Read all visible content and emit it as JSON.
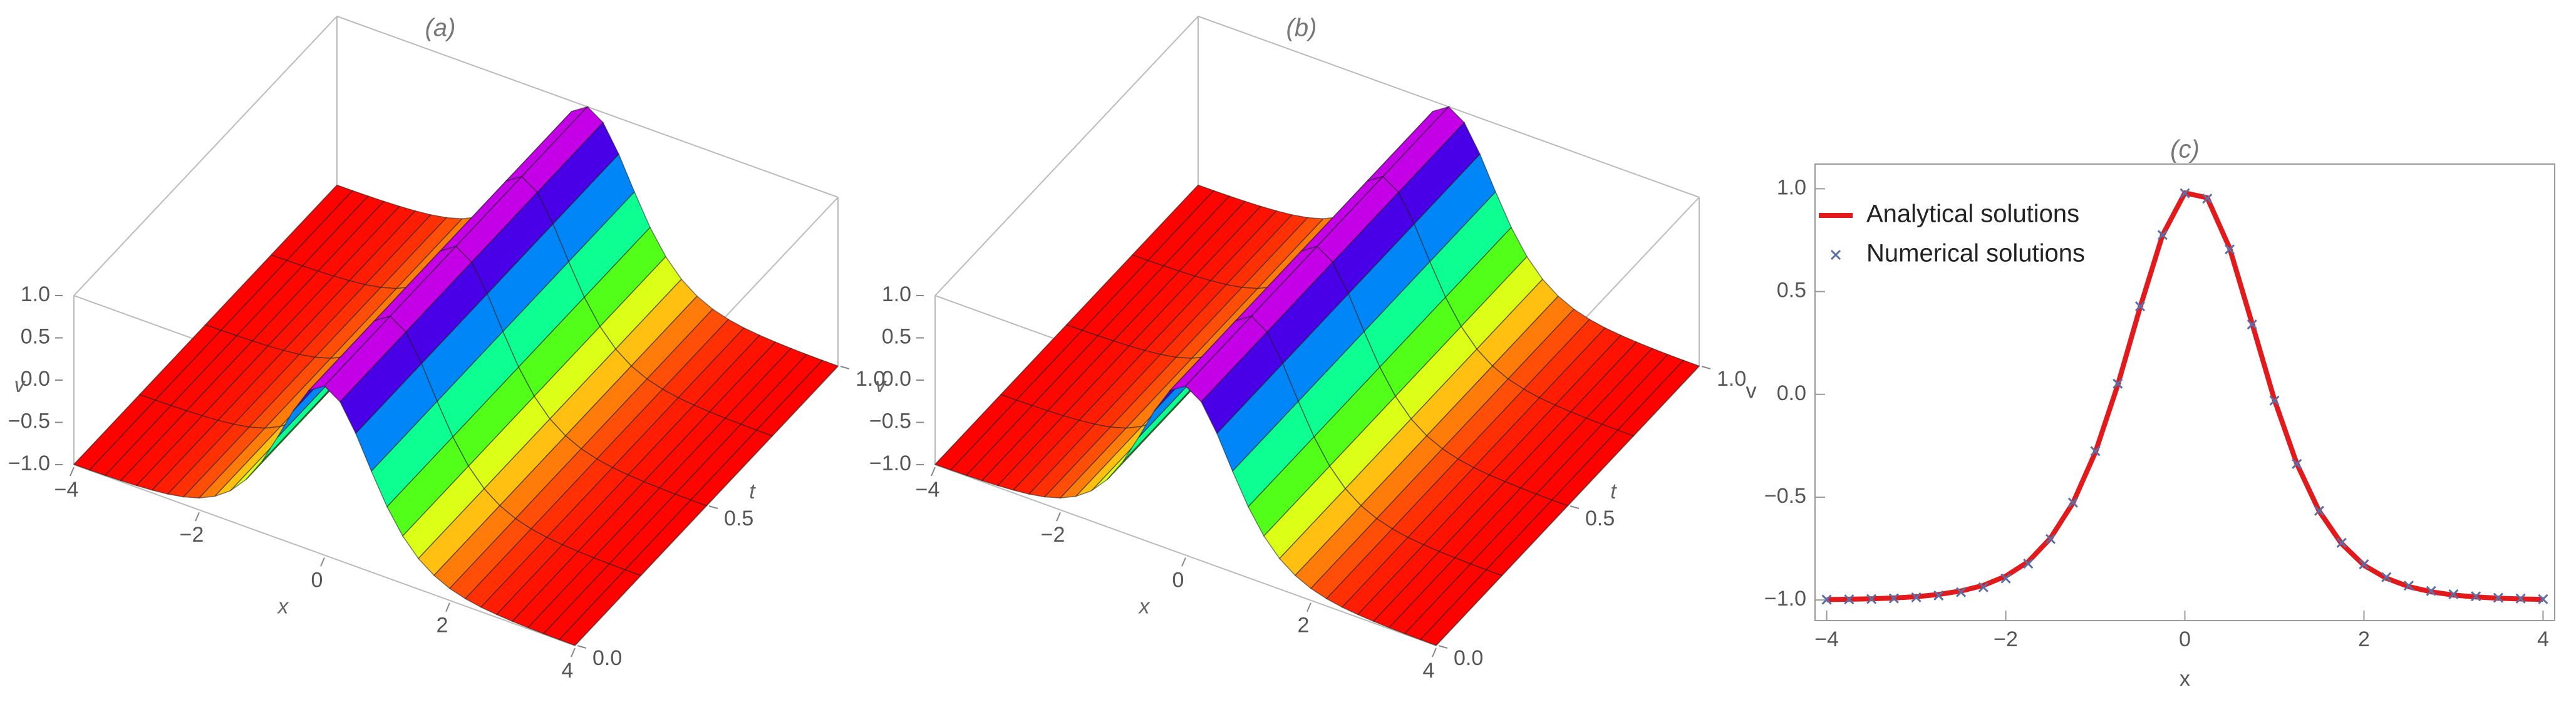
{
  "chart_data": [
    {
      "type": "surface3d",
      "title": "(a)",
      "xlabel": "x",
      "tlabel": "t",
      "zlabel": "v",
      "x": [
        -4,
        -3.75,
        -3.5,
        -3.25,
        -3,
        -2.75,
        -2.5,
        -2.25,
        -2,
        -1.75,
        -1.5,
        -1.25,
        -1,
        -0.75,
        -0.5,
        -0.25,
        0,
        0.25,
        0.5,
        0.75,
        1,
        1.25,
        1.5,
        1.75,
        2,
        2.25,
        2.5,
        2.75,
        3,
        3.25,
        3.5,
        3.75,
        4
      ],
      "t": [
        0,
        0.25,
        0.5,
        0.75,
        1
      ],
      "z": [
        [
          -0.997,
          -0.996,
          -0.993,
          -0.988,
          -0.98,
          -0.967,
          -0.947,
          -0.913,
          -0.859,
          -0.772,
          -0.639,
          -0.439,
          -0.16,
          0.193,
          0.573,
          0.88,
          1,
          0.88,
          0.573,
          0.193,
          -0.16,
          -0.439,
          -0.639,
          -0.772,
          -0.859,
          -0.913,
          -0.947,
          -0.967,
          -0.98,
          -0.988,
          -0.993,
          -0.996,
          -0.997
        ],
        [
          -0.997,
          -0.996,
          -0.993,
          -0.988,
          -0.98,
          -0.967,
          -0.947,
          -0.913,
          -0.859,
          -0.772,
          -0.639,
          -0.439,
          -0.16,
          0.193,
          0.573,
          0.88,
          1,
          0.88,
          0.573,
          0.193,
          -0.16,
          -0.439,
          -0.639,
          -0.772,
          -0.859,
          -0.913,
          -0.947,
          -0.967,
          -0.98,
          -0.988,
          -0.993,
          -0.996,
          -0.997
        ],
        [
          -0.997,
          -0.996,
          -0.993,
          -0.988,
          -0.98,
          -0.967,
          -0.947,
          -0.913,
          -0.859,
          -0.772,
          -0.639,
          -0.439,
          -0.16,
          0.193,
          0.573,
          0.88,
          1,
          0.88,
          0.573,
          0.193,
          -0.16,
          -0.439,
          -0.639,
          -0.772,
          -0.859,
          -0.913,
          -0.947,
          -0.967,
          -0.98,
          -0.988,
          -0.993,
          -0.996,
          -0.997
        ],
        [
          -0.997,
          -0.996,
          -0.993,
          -0.988,
          -0.98,
          -0.967,
          -0.947,
          -0.913,
          -0.859,
          -0.772,
          -0.639,
          -0.439,
          -0.16,
          0.193,
          0.573,
          0.88,
          1,
          0.88,
          0.573,
          0.193,
          -0.16,
          -0.439,
          -0.639,
          -0.772,
          -0.859,
          -0.913,
          -0.947,
          -0.967,
          -0.98,
          -0.988,
          -0.993,
          -0.996,
          -0.997
        ],
        [
          -0.997,
          -0.996,
          -0.993,
          -0.988,
          -0.98,
          -0.967,
          -0.947,
          -0.913,
          -0.859,
          -0.772,
          -0.639,
          -0.439,
          -0.16,
          0.193,
          0.573,
          0.88,
          1,
          0.88,
          0.573,
          0.193,
          -0.16,
          -0.439,
          -0.639,
          -0.772,
          -0.859,
          -0.913,
          -0.947,
          -0.967,
          -0.98,
          -0.988,
          -0.993,
          -0.996,
          -0.997
        ]
      ],
      "xlim": [
        -4,
        4
      ],
      "tlim": [
        0,
        1
      ],
      "zlim": [
        -1,
        1
      ],
      "xticks": [
        {
          "value": -4,
          "label": "−4"
        },
        {
          "value": -2,
          "label": "−2"
        },
        0,
        2,
        4
      ],
      "tticks": [
        {
          "value": 0,
          "label": "0.0"
        },
        0.5,
        {
          "value": 1,
          "label": "1.0"
        }
      ],
      "zticks": [
        {
          "value": -1,
          "label": "−1.0"
        },
        {
          "value": -0.5,
          "label": "−0.5"
        },
        {
          "value": 0,
          "label": "0.0"
        },
        0.5,
        {
          "value": 1,
          "label": "1.0"
        }
      ]
    },
    {
      "type": "surface3d",
      "title": "(b)",
      "xlabel": "x",
      "tlabel": "t",
      "zlabel": "v",
      "x": [
        -4,
        -3.75,
        -3.5,
        -3.25,
        -3,
        -2.75,
        -2.5,
        -2.25,
        -2,
        -1.75,
        -1.5,
        -1.25,
        -1,
        -0.75,
        -0.5,
        -0.25,
        0,
        0.25,
        0.5,
        0.75,
        1,
        1.25,
        1.5,
        1.75,
        2,
        2.25,
        2.5,
        2.75,
        3,
        3.25,
        3.5,
        3.75,
        4
      ],
      "t": [
        0,
        0.25,
        0.5,
        0.75,
        1
      ],
      "z": [
        [
          -0.997,
          -0.996,
          -0.993,
          -0.988,
          -0.98,
          -0.967,
          -0.947,
          -0.913,
          -0.859,
          -0.772,
          -0.639,
          -0.439,
          -0.16,
          0.193,
          0.573,
          0.88,
          1,
          0.88,
          0.573,
          0.193,
          -0.16,
          -0.439,
          -0.639,
          -0.772,
          -0.859,
          -0.913,
          -0.947,
          -0.967,
          -0.98,
          -0.988,
          -0.993,
          -0.996,
          -0.997
        ],
        [
          -0.997,
          -0.996,
          -0.993,
          -0.988,
          -0.98,
          -0.967,
          -0.947,
          -0.913,
          -0.859,
          -0.772,
          -0.639,
          -0.439,
          -0.16,
          0.193,
          0.573,
          0.88,
          1,
          0.88,
          0.573,
          0.193,
          -0.16,
          -0.439,
          -0.639,
          -0.772,
          -0.859,
          -0.913,
          -0.947,
          -0.967,
          -0.98,
          -0.988,
          -0.993,
          -0.996,
          -0.997
        ],
        [
          -0.997,
          -0.996,
          -0.993,
          -0.988,
          -0.98,
          -0.967,
          -0.947,
          -0.913,
          -0.859,
          -0.772,
          -0.639,
          -0.439,
          -0.16,
          0.193,
          0.573,
          0.88,
          1,
          0.88,
          0.573,
          0.193,
          -0.16,
          -0.439,
          -0.639,
          -0.772,
          -0.859,
          -0.913,
          -0.947,
          -0.967,
          -0.98,
          -0.988,
          -0.993,
          -0.996,
          -0.997
        ],
        [
          -0.997,
          -0.996,
          -0.993,
          -0.988,
          -0.98,
          -0.967,
          -0.947,
          -0.913,
          -0.859,
          -0.772,
          -0.639,
          -0.439,
          -0.16,
          0.193,
          0.573,
          0.88,
          1,
          0.88,
          0.573,
          0.193,
          -0.16,
          -0.439,
          -0.639,
          -0.772,
          -0.859,
          -0.913,
          -0.947,
          -0.967,
          -0.98,
          -0.988,
          -0.993,
          -0.996,
          -0.997
        ],
        [
          -0.997,
          -0.996,
          -0.993,
          -0.988,
          -0.98,
          -0.967,
          -0.947,
          -0.913,
          -0.859,
          -0.772,
          -0.639,
          -0.439,
          -0.16,
          0.193,
          0.573,
          0.88,
          1,
          0.88,
          0.573,
          0.193,
          -0.16,
          -0.439,
          -0.639,
          -0.772,
          -0.859,
          -0.913,
          -0.947,
          -0.967,
          -0.98,
          -0.988,
          -0.993,
          -0.996,
          -0.997
        ]
      ],
      "xlim": [
        -4,
        4
      ],
      "tlim": [
        0,
        1
      ],
      "zlim": [
        -1,
        1
      ],
      "xticks": [
        {
          "value": -4,
          "label": "−4"
        },
        {
          "value": -2,
          "label": "−2"
        },
        0,
        2,
        4
      ],
      "tticks": [
        {
          "value": 0,
          "label": "0.0"
        },
        0.5,
        {
          "value": 1,
          "label": "1.0"
        }
      ],
      "zticks": [
        {
          "value": -1,
          "label": "−1.0"
        },
        {
          "value": -0.5,
          "label": "−0.5"
        },
        {
          "value": 0,
          "label": "0.0"
        },
        0.5,
        {
          "value": 1,
          "label": "1.0"
        }
      ]
    },
    {
      "type": "line",
      "title": "(c)",
      "xlabel": "x",
      "ylabel": "v",
      "legend": "upper left",
      "x": [
        -4,
        -3.75,
        -3.5,
        -3.25,
        -3,
        -2.75,
        -2.5,
        -2.25,
        -2,
        -1.75,
        -1.5,
        -1.25,
        -1,
        -0.75,
        -0.5,
        -0.25,
        0,
        0.25,
        0.5,
        0.75,
        1,
        1.25,
        1.5,
        1.75,
        2,
        2.25,
        2.5,
        2.75,
        3,
        3.25,
        3.5,
        3.75,
        4
      ],
      "series": [
        {
          "name": "Analytical solutions",
          "color": "#e31a1c",
          "style": "line",
          "values": [
            -0.998,
            -0.996,
            -0.994,
            -0.99,
            -0.984,
            -0.973,
            -0.956,
            -0.929,
            -0.884,
            -0.814,
            -0.699,
            -0.528,
            -0.282,
            0.045,
            0.423,
            0.774,
            0.98,
            0.956,
            0.711,
            0.346,
            -0.026,
            -0.337,
            -0.568,
            -0.726,
            -0.831,
            -0.894,
            -0.935,
            -0.96,
            -0.976,
            -0.985,
            -0.991,
            -0.995,
            -0.997
          ]
        },
        {
          "name": "Numerical solutions",
          "color": "#5a6ea8",
          "style": "marker",
          "values": [
            -0.998,
            -0.997,
            -0.995,
            -0.992,
            -0.987,
            -0.978,
            -0.962,
            -0.938,
            -0.895,
            -0.823,
            -0.703,
            -0.526,
            -0.276,
            0.052,
            0.428,
            0.775,
            0.978,
            0.952,
            0.705,
            0.34,
            -0.03,
            -0.338,
            -0.566,
            -0.722,
            -0.826,
            -0.889,
            -0.93,
            -0.956,
            -0.972,
            -0.982,
            -0.989,
            -0.993,
            -0.996
          ]
        }
      ],
      "xlim": [
        -4.13,
        4.13
      ],
      "ylim": [
        -1.1,
        1.12
      ],
      "xticks": [
        {
          "value": -4,
          "label": "−4"
        },
        {
          "value": -2,
          "label": "−2"
        },
        0,
        2,
        4
      ],
      "yticks": [
        {
          "value": -1,
          "label": "−1.0"
        },
        {
          "value": -0.5,
          "label": "−0.5"
        },
        {
          "value": 0,
          "label": "0.0"
        },
        0.5,
        {
          "value": 1,
          "label": "1.0"
        }
      ]
    }
  ]
}
